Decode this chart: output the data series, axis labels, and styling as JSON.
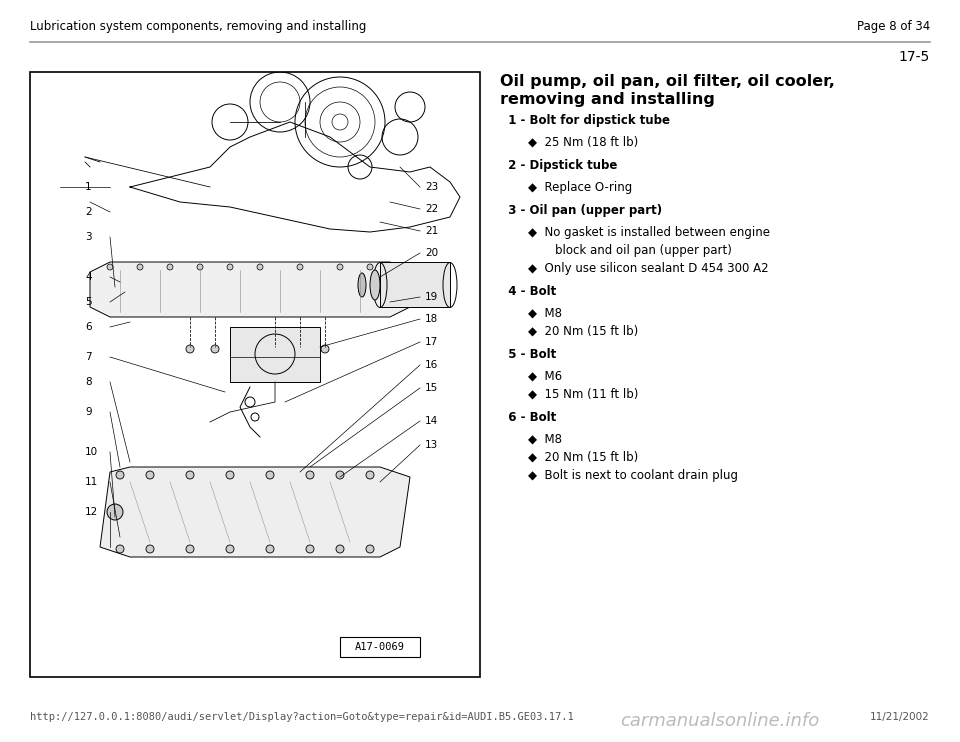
{
  "bg_color": "#ffffff",
  "header_text": "Lubrication system components, removing and installing",
  "page_text": "Page 8 of 34",
  "page_number": "17-5",
  "section_title_line1": "Oil pump, oil pan, oil filter, oil cooler,",
  "section_title_line2": "removing and installing",
  "footer_url": "http://127.0.0.1:8080/audi/servlet/Display?action=Goto&type=repair&id=AUDI.B5.GE03.17.1",
  "footer_date": "11/21/2002",
  "footer_watermark": "carmanualsonline.info",
  "image_label": "A17-0069",
  "header_line_color": "#999999",
  "header_fontsize": 8.5,
  "page_num_fontsize": 8.5,
  "section_title_fontsize": 11.5,
  "item_bold_fontsize": 8.5,
  "bullet_fontsize": 8.5,
  "footer_fontsize": 7.5,
  "items": [
    {
      "num": "1",
      "bold": "Bolt for dipstick tube",
      "bullets": [
        "25 Nm (18 ft lb)"
      ]
    },
    {
      "num": "2",
      "bold": "Dipstick tube",
      "bullets": [
        "Replace O-ring"
      ]
    },
    {
      "num": "3",
      "bold": "Oil pan (upper part)",
      "bullets": [
        "No gasket is installed between engine",
        "    block and oil pan (upper part)",
        "Only use silicon sealant D 454 300 A2"
      ]
    },
    {
      "num": "4",
      "bold": "Bolt",
      "bullets": [
        "M8",
        "20 Nm (15 ft lb)"
      ]
    },
    {
      "num": "5",
      "bold": "Bolt",
      "bullets": [
        "M6",
        "15 Nm (11 ft lb)"
      ]
    },
    {
      "num": "6",
      "bold": "Bolt",
      "bullets": [
        "M8",
        "20 Nm (15 ft lb)",
        "Bolt is next to coolant drain plug"
      ]
    }
  ]
}
